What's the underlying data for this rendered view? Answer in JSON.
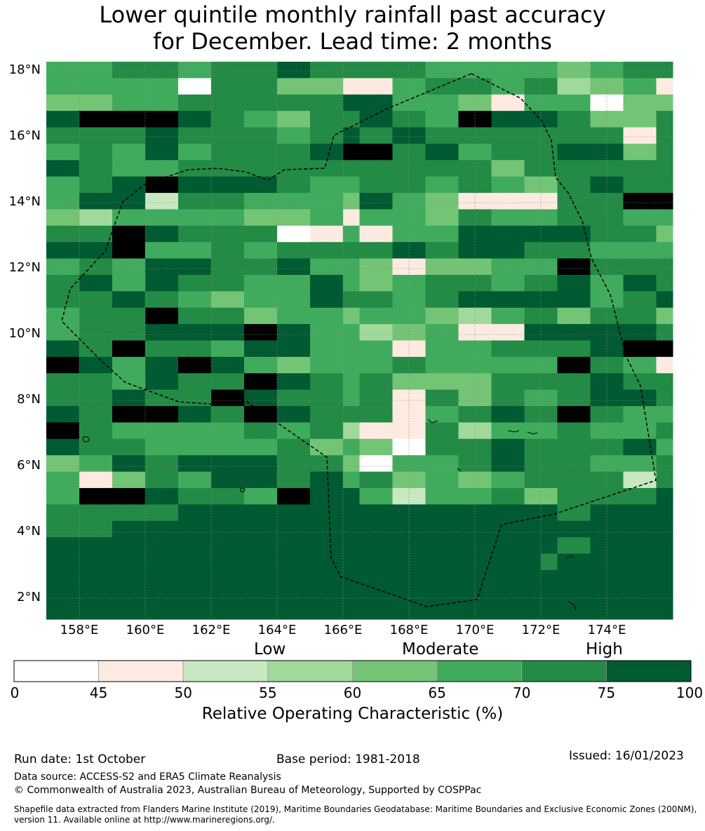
{
  "title_line1": "Lower quintile monthly rainfall past accuracy",
  "title_line2": "for December. Lead time: 2 months",
  "map": {
    "lon_labels": [
      "158°E",
      "160°E",
      "162°E",
      "164°E",
      "166°E",
      "168°E",
      "170°E",
      "172°E",
      "174°E"
    ],
    "lat_labels": [
      "18°N",
      "16°N",
      "14°N",
      "12°N",
      "10°N",
      "8°N",
      "6°N",
      "4°N",
      "2°N"
    ],
    "cell_classes": [
      "55665667666655554566",
      "55550664411566563451",
      "44556666677554155044",
      "78887654667658776446",
      "66676665676766666616",
      "56575666788675667746",
      "76556666666666466666",
      "56787776556656546766",
      "57726655547541116688",
      "43555544515546556655",
      "66876660151557777664",
      "77855656666767766555",
      "56577667554144558666",
      "67576655754566567576",
      "66765455766567777567",
      "56686645545543564664",
      "56677787553451177776",
      "73768876715056768757",
      "76866577555155666788",
      "87578754555655558651",
      "66576687656444666766",
      "66766876656164656776",
      "76887687666156768655",
      "86555565631163556556",
      "76655556454066766675",
      "45767776640556766556",
      "51465776756454566626",
      "58876658775255646667",
      "76655776867565556556",
      "66887886656655675544",
      "65455777666566575566",
      "66655777676554576666",
      "55545557686555555555",
      "57676776566777555556",
      "56555556655655556655",
      "76567576566675665655"
    ],
    "grid_rows_note": "",
    "boundary_note": ""
  },
  "colorbar": {
    "band_labels": [
      "Low",
      "Moderate",
      "High"
    ],
    "tick_labels": [
      "0",
      "45",
      "50",
      "55",
      "60",
      "65",
      "70",
      "75",
      "100"
    ],
    "colors": [
      "#ffffff",
      "#fdebe2",
      "#c7e8c1",
      "#a1d99b",
      "#74c476",
      "#41ab5d",
      "#238b45",
      "#005a32"
    ],
    "title": "Relative Operating Characteristic (%)"
  },
  "footer": {
    "run_date": "Run date: 1st October",
    "base_period": "Base period: 1981-2018",
    "issued": "Issued: 16/01/2023",
    "data_source": "Data source: ACCESS-S2 and ERA5 Climate Reanalysis",
    "copyright": "© Commonwealth of Australia 2023, Australian Bureau of Meteorology, Supported by COSPPac",
    "shapefile_line1": "Shapefile data extracted from Flanders Marine Institute (2019), Maritime Boundaries Geodatabase: Maritime Boundaries and Exclusive Economic Zones (200NM),",
    "shapefile_line2": "version 11. Available online at http://www.marineregions.org/."
  }
}
